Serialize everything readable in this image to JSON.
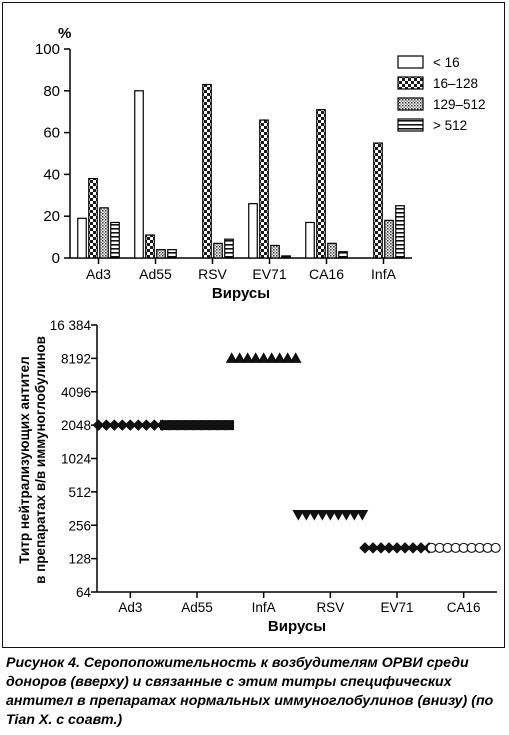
{
  "chart_data": [
    {
      "type": "bar",
      "y_unit_label": "%",
      "xlabel": "Вирусы",
      "ylabel": "",
      "ylim": [
        0,
        100
      ],
      "yticks": [
        0,
        20,
        40,
        60,
        80,
        100
      ],
      "categories": [
        "Ad3",
        "Ad55",
        "RSV",
        "EV71",
        "CA16",
        "InfA"
      ],
      "legend_position": "top-right",
      "series": [
        {
          "name": "< 16",
          "pattern": "empty",
          "values": [
            19,
            80,
            0,
            26,
            17,
            0
          ]
        },
        {
          "name": "16–128",
          "pattern": "checker",
          "values": [
            38,
            11,
            83,
            66,
            71,
            55
          ]
        },
        {
          "name": "129–512",
          "pattern": "dots",
          "values": [
            24,
            4,
            7,
            6,
            7,
            18
          ]
        },
        {
          "name": "> 512",
          "pattern": "stripes",
          "values": [
            17,
            4,
            9,
            1,
            3,
            25
          ]
        }
      ]
    },
    {
      "type": "scatter",
      "ylabel": "Титр нейтрализующих антител в препаратах в/в иммуноглобулинов",
      "ylabel_lines": [
        "Титр нейтрализующих антител",
        "в препаратах в/в иммуноглобулинов"
      ],
      "xlabel": "Вирусы",
      "y_scale": "log2",
      "ylim": [
        64,
        16384
      ],
      "yticks": [
        64,
        128,
        256,
        512,
        1024,
        2048,
        4096,
        8192,
        16384
      ],
      "ytick_labels": [
        "64",
        "128",
        "256",
        "512",
        "1024",
        "2048",
        "4096",
        "8192",
        "16 384"
      ],
      "categories": [
        "Ad3",
        "Ad55",
        "InfA",
        "RSV",
        "EV71",
        "CA16"
      ],
      "markers": [
        "diamond",
        "square",
        "triangle-up",
        "triangle-down",
        "diamond",
        "circle"
      ],
      "values": [
        2048,
        2048,
        8192,
        320,
        160,
        160
      ]
    }
  ],
  "caption": {
    "label": "Рисунок 4.",
    "text": "Серопопожительность к возбудителям ОРВИ среди доноров (вверху) и связанные с этим титры специфических антител в препаратах нормальных иммуноглобулинов (внизу) (по Tian X. с соавт.)"
  }
}
